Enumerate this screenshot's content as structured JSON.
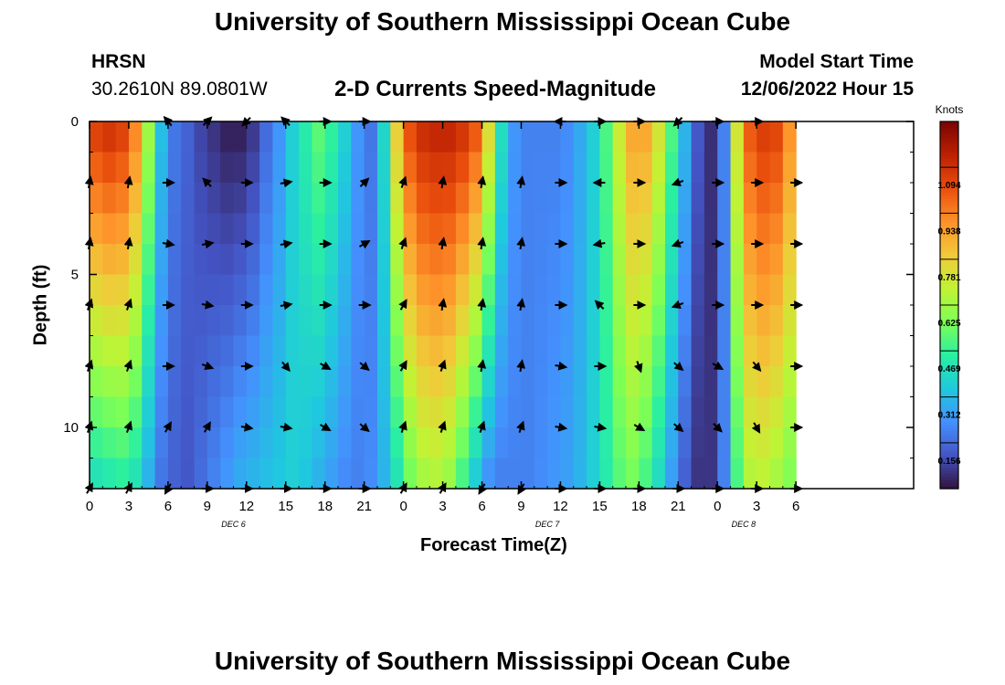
{
  "header": {
    "title": "University of Southern Mississippi Ocean Cube",
    "station": "HRSN",
    "coords": "30.2610N  89.0801W",
    "subtitle": "2-D Currents Speed-Magnitude",
    "model_label": "Model Start Time",
    "model_time": "12/06/2022 Hour 15"
  },
  "footer": {
    "title": "University of Southern Mississippi Ocean Cube"
  },
  "colors": {
    "colormap": [
      "#30123b",
      "#4454c4",
      "#4490fe",
      "#1fc8de",
      "#29efa2",
      "#7dff56",
      "#c1f334",
      "#f1ca3a",
      "#fe922a",
      "#ea4f0d",
      "#be2102",
      "#7a0403"
    ],
    "arrow": "#000000"
  },
  "chart_data": {
    "type": "heatmap",
    "title": "2-D Currents Speed-Magnitude",
    "xlabel": "Forecast Time(Z)",
    "ylabel": "Depth (ft)",
    "x_hours": [
      0,
      63
    ],
    "ylim": [
      0,
      12
    ],
    "x_ticks": [
      0,
      3,
      6,
      9,
      12,
      15,
      18,
      21,
      24,
      27,
      30,
      33,
      36,
      39,
      42,
      45,
      48,
      51,
      54
    ],
    "x_tick_labels": [
      "0",
      "3",
      "6",
      "9",
      "12",
      "15",
      "18",
      "21",
      "0",
      "3",
      "6",
      "9",
      "12",
      "15",
      "18",
      "21",
      "0",
      "3",
      "6"
    ],
    "y_ticks": [
      0,
      5,
      10
    ],
    "y_tick_labels": [
      "0",
      "5",
      "10"
    ],
    "day_labels": [
      {
        "hour": 11,
        "label": "DEC 6"
      },
      {
        "hour": 35,
        "label": "DEC 7"
      },
      {
        "hour": 50,
        "label": "DEC 8"
      }
    ],
    "colorbar": {
      "title": "Knots",
      "range": [
        0,
        1.25
      ],
      "ticks": [
        0.156,
        0.312,
        0.469,
        0.625,
        0.781,
        0.938,
        1.094
      ],
      "tick_labels": [
        "0.156",
        "0.312",
        "0.469",
        "0.625",
        "0.781",
        "0.938",
        "1.094"
      ]
    },
    "time_hours": [
      0,
      1,
      2,
      3,
      4,
      5,
      6,
      7,
      8,
      9,
      10,
      11,
      12,
      13,
      14,
      15,
      16,
      17,
      18,
      19,
      20,
      21,
      22,
      23,
      24,
      25,
      26,
      27,
      28,
      29,
      30,
      31,
      32,
      33,
      34,
      35,
      36,
      37,
      38,
      39,
      40,
      41,
      42,
      43,
      44,
      45,
      46,
      47,
      48,
      49,
      50,
      51,
      52,
      53
    ],
    "depth_rows_ft": [
      0,
      1,
      2,
      3,
      4,
      5,
      6,
      7,
      8,
      9,
      10,
      11
    ],
    "speed_surface": [
      1.05,
      1.08,
      1.05,
      0.92,
      0.62,
      0.32,
      0.18,
      0.14,
      0.09,
      0.06,
      0.03,
      0.03,
      0.07,
      0.16,
      0.24,
      0.36,
      0.44,
      0.52,
      0.46,
      0.36,
      0.24,
      0.18,
      0.38,
      0.78,
      1.02,
      1.1,
      1.12,
      1.12,
      1.08,
      1.0,
      0.74,
      0.4,
      0.24,
      0.2,
      0.2,
      0.2,
      0.22,
      0.28,
      0.36,
      0.5,
      0.7,
      0.86,
      0.86,
      0.72,
      0.5,
      0.3,
      0.12,
      0.05,
      0.2,
      0.72,
      1.0,
      1.06,
      1.04,
      0.9
    ],
    "speed_bottom": [
      0.42,
      0.44,
      0.46,
      0.42,
      0.3,
      0.18,
      0.14,
      0.12,
      0.16,
      0.2,
      0.24,
      0.28,
      0.3,
      0.32,
      0.34,
      0.36,
      0.34,
      0.3,
      0.26,
      0.22,
      0.2,
      0.22,
      0.3,
      0.42,
      0.56,
      0.64,
      0.66,
      0.62,
      0.5,
      0.36,
      0.24,
      0.2,
      0.2,
      0.2,
      0.22,
      0.24,
      0.26,
      0.3,
      0.36,
      0.44,
      0.52,
      0.56,
      0.5,
      0.4,
      0.26,
      0.14,
      0.06,
      0.06,
      0.2,
      0.5,
      0.66,
      0.68,
      0.64,
      0.58
    ],
    "arrow_hours": [
      0,
      3,
      6,
      9,
      12,
      15,
      18,
      21,
      24,
      27,
      30,
      33,
      36,
      39,
      42,
      45,
      48,
      51,
      54
    ],
    "arrow_depths_ft": [
      0,
      2,
      4,
      6,
      8,
      10,
      12
    ],
    "arrow_dir_deg": [
      [
        null,
        null,
        130,
        45,
        225,
        135,
        0,
        0,
        null,
        null,
        null,
        null,
        180,
        0,
        0,
        225,
        0,
        0,
        null
      ],
      [
        80,
        80,
        0,
        135,
        0,
        10,
        0,
        45,
        70,
        80,
        80,
        80,
        0,
        180,
        0,
        200,
        0,
        0,
        0
      ],
      [
        80,
        80,
        350,
        10,
        0,
        10,
        0,
        30,
        70,
        80,
        80,
        80,
        0,
        190,
        0,
        200,
        0,
        0,
        0
      ],
      [
        70,
        70,
        0,
        350,
        0,
        10,
        0,
        0,
        60,
        80,
        80,
        80,
        0,
        135,
        0,
        200,
        0,
        0,
        0
      ],
      [
        70,
        70,
        0,
        340,
        0,
        310,
        330,
        320,
        60,
        70,
        80,
        80,
        350,
        0,
        290,
        320,
        330,
        310,
        0
      ],
      [
        70,
        70,
        60,
        60,
        350,
        350,
        330,
        320,
        70,
        70,
        70,
        70,
        350,
        350,
        330,
        320,
        315,
        300,
        0
      ],
      [
        60,
        60,
        240,
        0,
        0,
        0,
        0,
        0,
        60,
        60,
        240,
        240,
        0,
        0,
        0,
        0,
        0,
        0,
        0
      ]
    ]
  }
}
